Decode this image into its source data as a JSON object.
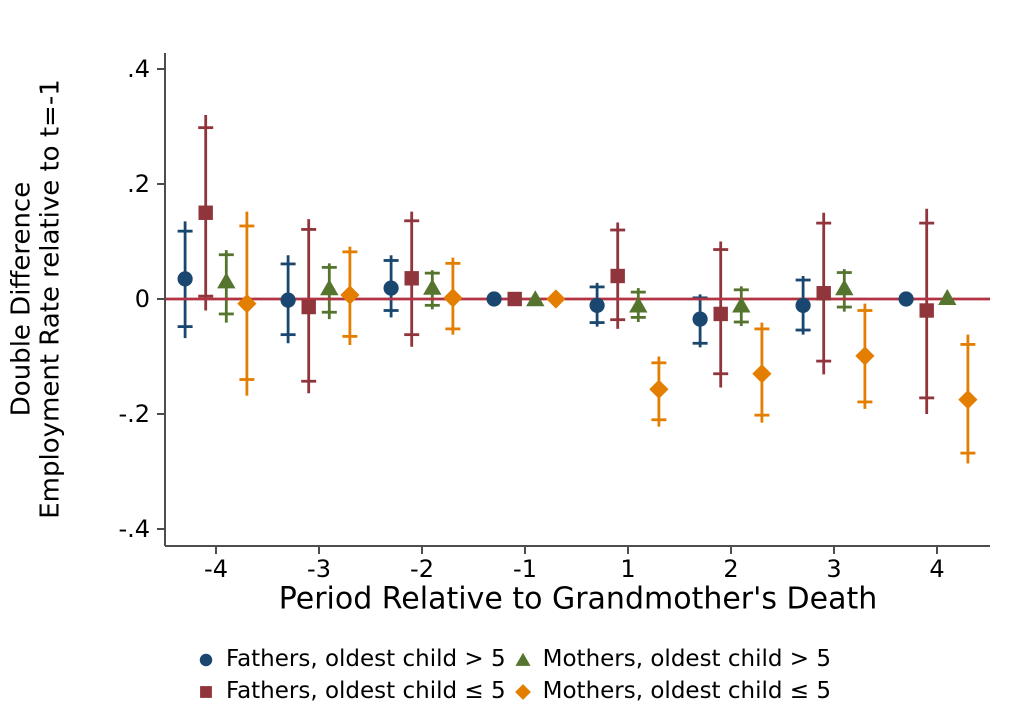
{
  "chart_data": {
    "type": "scatter",
    "subtype": "coefficient-plot-with-capped-confidence-intervals",
    "title": "",
    "xlabel": "Period Relative to Grandmother's Death",
    "ylabel_lines": [
      "Double Difference",
      "Employment Rate relative to t=-1"
    ],
    "x_categories": [
      "-4",
      "-3",
      "-2",
      "-1",
      "1",
      "2",
      "3",
      "4"
    ],
    "y_ticks": [
      {
        "label": ".4",
        "value": 0.4
      },
      {
        "label": ".2",
        "value": 0.2
      },
      {
        "label": "0",
        "value": 0
      },
      {
        "label": "-.2",
        "value": -0.2
      },
      {
        "label": "-.4",
        "value": -0.4
      }
    ],
    "ylim": [
      -0.43,
      0.43
    ],
    "grid": false,
    "legend_position": "bottom",
    "axis_color": "#4d4d4d",
    "zero_line": {
      "value": 0,
      "color": "#b13344"
    },
    "series": [
      {
        "name": "Fathers, oldest child > 5",
        "marker": "circle",
        "color": "#1a476f",
        "offset": -0.3,
        "points": [
          {
            "t": "-4",
            "v": 0.035,
            "lo": -0.068,
            "hi": 0.135,
            "clo": -0.048,
            "chi": 0.118
          },
          {
            "t": "-3",
            "v": -0.002,
            "lo": -0.077,
            "hi": 0.076,
            "clo": -0.062,
            "chi": 0.061
          },
          {
            "t": "-2",
            "v": 0.019,
            "lo": -0.032,
            "hi": 0.076,
            "clo": -0.02,
            "chi": 0.067
          },
          {
            "t": "-1",
            "v": 0,
            "lo": null,
            "hi": null,
            "clo": null,
            "chi": null
          },
          {
            "t": "1",
            "v": -0.011,
            "lo": -0.048,
            "hi": 0.028,
            "clo": -0.041,
            "chi": 0.021
          },
          {
            "t": "2",
            "v": -0.035,
            "lo": -0.084,
            "hi": 0.008,
            "clo": -0.077,
            "chi": 0.002
          },
          {
            "t": "3",
            "v": -0.011,
            "lo": -0.062,
            "hi": 0.04,
            "clo": -0.054,
            "chi": 0.033
          },
          {
            "t": "4",
            "v": 0.0,
            "lo": null,
            "hi": null,
            "clo": null,
            "chi": null
          }
        ]
      },
      {
        "name": "Fathers, oldest child ≤ 5",
        "marker": "square",
        "color": "#90353b",
        "offset": -0.1,
        "points": [
          {
            "t": "-4",
            "v": 0.15,
            "lo": -0.02,
            "hi": 0.32,
            "clo": 0.005,
            "chi": 0.298
          },
          {
            "t": "-3",
            "v": -0.014,
            "lo": -0.164,
            "hi": 0.139,
            "clo": -0.143,
            "chi": 0.121
          },
          {
            "t": "-2",
            "v": 0.036,
            "lo": -0.083,
            "hi": 0.152,
            "clo": -0.062,
            "chi": 0.136
          },
          {
            "t": "-1",
            "v": 0,
            "lo": null,
            "hi": null,
            "clo": null,
            "chi": null
          },
          {
            "t": "1",
            "v": 0.04,
            "lo": -0.052,
            "hi": 0.133,
            "clo": -0.036,
            "chi": 0.12
          },
          {
            "t": "2",
            "v": -0.026,
            "lo": -0.154,
            "hi": 0.1,
            "clo": -0.13,
            "chi": 0.086
          },
          {
            "t": "3",
            "v": 0.01,
            "lo": -0.131,
            "hi": 0.15,
            "clo": -0.108,
            "chi": 0.132
          },
          {
            "t": "4",
            "v": -0.02,
            "lo": -0.2,
            "hi": 0.157,
            "clo": -0.172,
            "chi": 0.132
          }
        ]
      },
      {
        "name": "Mothers, oldest child > 5",
        "marker": "triangle",
        "color": "#55752f",
        "offset": 0.1,
        "points": [
          {
            "t": "-4",
            "v": 0.031,
            "lo": -0.041,
            "hi": 0.085,
            "clo": -0.026,
            "chi": 0.077
          },
          {
            "t": "-3",
            "v": 0.019,
            "lo": -0.035,
            "hi": 0.062,
            "clo": -0.023,
            "chi": 0.055
          },
          {
            "t": "-2",
            "v": 0.02,
            "lo": -0.018,
            "hi": 0.05,
            "clo": -0.011,
            "chi": 0.045
          },
          {
            "t": "-1",
            "v": 0,
            "lo": null,
            "hi": null,
            "clo": null,
            "chi": null
          },
          {
            "t": "1",
            "v": -0.011,
            "lo": -0.04,
            "hi": 0.019,
            "clo": -0.032,
            "chi": 0.012
          },
          {
            "t": "2",
            "v": -0.011,
            "lo": -0.047,
            "hi": 0.022,
            "clo": -0.04,
            "chi": 0.016
          },
          {
            "t": "3",
            "v": 0.019,
            "lo": -0.022,
            "hi": 0.052,
            "clo": -0.014,
            "chi": 0.046
          },
          {
            "t": "4",
            "v": 0.002,
            "lo": null,
            "hi": null,
            "clo": null,
            "chi": null
          }
        ]
      },
      {
        "name": "Mothers, oldest child ≤ 5",
        "marker": "diamond",
        "color": "#e37e00",
        "offset": 0.3,
        "points": [
          {
            "t": "-4",
            "v": -0.008,
            "lo": -0.168,
            "hi": 0.152,
            "clo": -0.14,
            "chi": 0.127
          },
          {
            "t": "-3",
            "v": 0.007,
            "lo": -0.08,
            "hi": 0.091,
            "clo": -0.065,
            "chi": 0.082
          },
          {
            "t": "-2",
            "v": 0.002,
            "lo": -0.062,
            "hi": 0.072,
            "clo": -0.052,
            "chi": 0.062
          },
          {
            "t": "-1",
            "v": 0,
            "lo": null,
            "hi": null,
            "clo": null,
            "chi": null
          },
          {
            "t": "1",
            "v": -0.157,
            "lo": -0.222,
            "hi": -0.1,
            "clo": -0.21,
            "chi": -0.111
          },
          {
            "t": "2",
            "v": -0.13,
            "lo": -0.215,
            "hi": -0.041,
            "clo": -0.202,
            "chi": -0.052
          },
          {
            "t": "3",
            "v": -0.099,
            "lo": -0.191,
            "hi": -0.008,
            "clo": -0.179,
            "chi": -0.02
          },
          {
            "t": "4",
            "v": -0.175,
            "lo": -0.286,
            "hi": -0.062,
            "clo": -0.268,
            "chi": -0.079
          }
        ]
      }
    ],
    "legend_rows": [
      [
        0,
        2
      ],
      [
        1,
        3
      ]
    ]
  }
}
